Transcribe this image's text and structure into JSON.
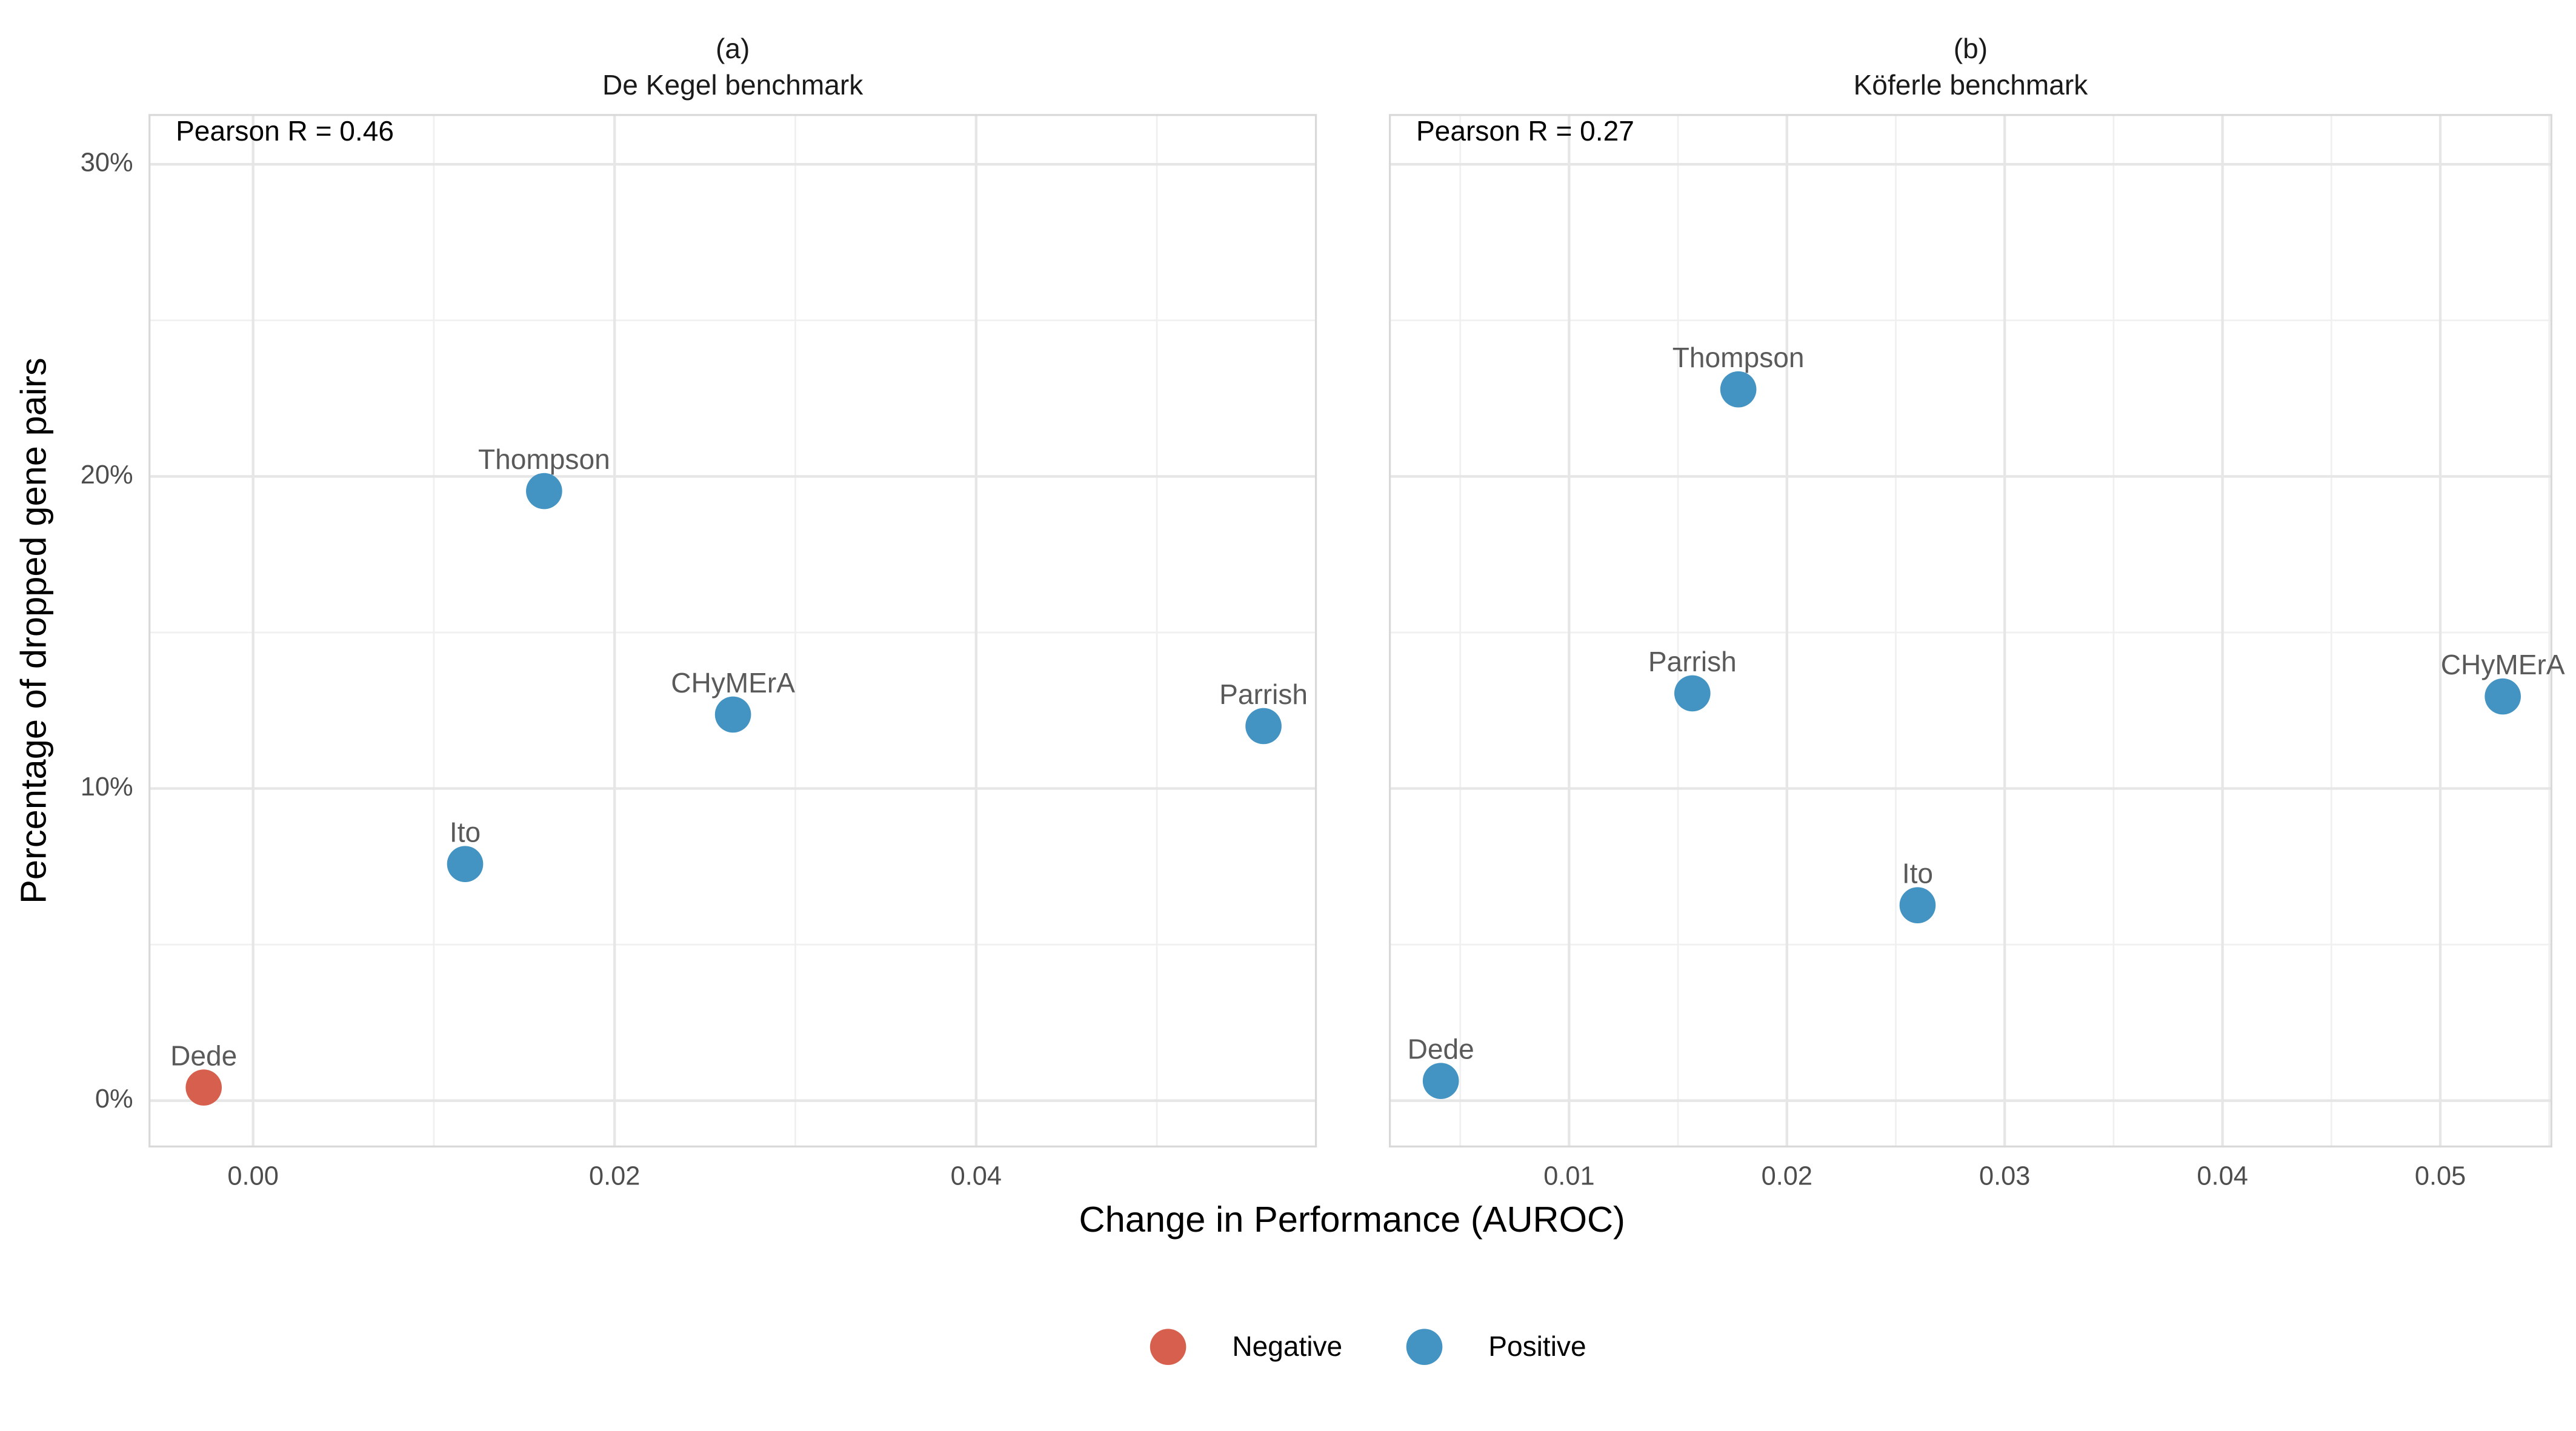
{
  "xlabel": "Change in Performance (AUROC)",
  "ylabel": "Percentage of dropped gene pairs",
  "chart_data": [
    {
      "type": "scatter",
      "title": "(a)",
      "subtitle": "De Kegel benchmark",
      "annotation": "Pearson R = 0.46",
      "xlim": [
        -0.00573,
        0.0588
      ],
      "xticks": [
        {
          "value": 0,
          "label": "0.00"
        },
        0.02,
        0.04
      ],
      "ylim": [
        -1.47,
        31.58
      ],
      "yticks": [
        {
          "value": 0,
          "label": "0%"
        },
        {
          "value": 10,
          "label": "10%"
        },
        {
          "value": 20,
          "label": "20%"
        },
        {
          "value": 30,
          "label": "30%"
        }
      ],
      "grid": true,
      "series": [
        {
          "name": "Negative",
          "color": "#d6604d",
          "x": [
            -0.00273
          ],
          "values": [
            0.42
          ],
          "labels": [
            "Dede"
          ]
        },
        {
          "name": "Positive",
          "color": "#4393c3",
          "x": [
            0.01173,
            0.0161,
            0.02655,
            0.0559
          ],
          "values": [
            7.58,
            19.53,
            12.37,
            12.0
          ],
          "labels": [
            "Ito",
            "Thompson",
            "CHyMErA",
            "Parrish"
          ]
        }
      ]
    },
    {
      "type": "scatter",
      "title": "(b)",
      "subtitle": "Köferle benchmark",
      "annotation": "Pearson R = 0.27",
      "xlim": [
        0.00177,
        0.0551
      ],
      "xticks": [
        0.01,
        0.02,
        0.03,
        0.04,
        0.05
      ],
      "ylim": [
        -1.47,
        31.58
      ],
      "yticks": [
        {
          "value": 0,
          "label": "0%"
        },
        {
          "value": 10,
          "label": "10%"
        },
        {
          "value": 20,
          "label": "20%"
        },
        {
          "value": 30,
          "label": "30%"
        }
      ],
      "grid": true,
      "series": [
        {
          "name": "Positive",
          "color": "#4393c3",
          "x": [
            0.00411,
            0.01566,
            0.01777,
            0.026,
            0.05287
          ],
          "values": [
            0.63,
            13.05,
            22.79,
            6.26,
            12.95
          ],
          "labels": [
            "Dede",
            "Parrish",
            "Thompson",
            "Ito",
            "CHyMErA"
          ]
        }
      ]
    }
  ]
}
